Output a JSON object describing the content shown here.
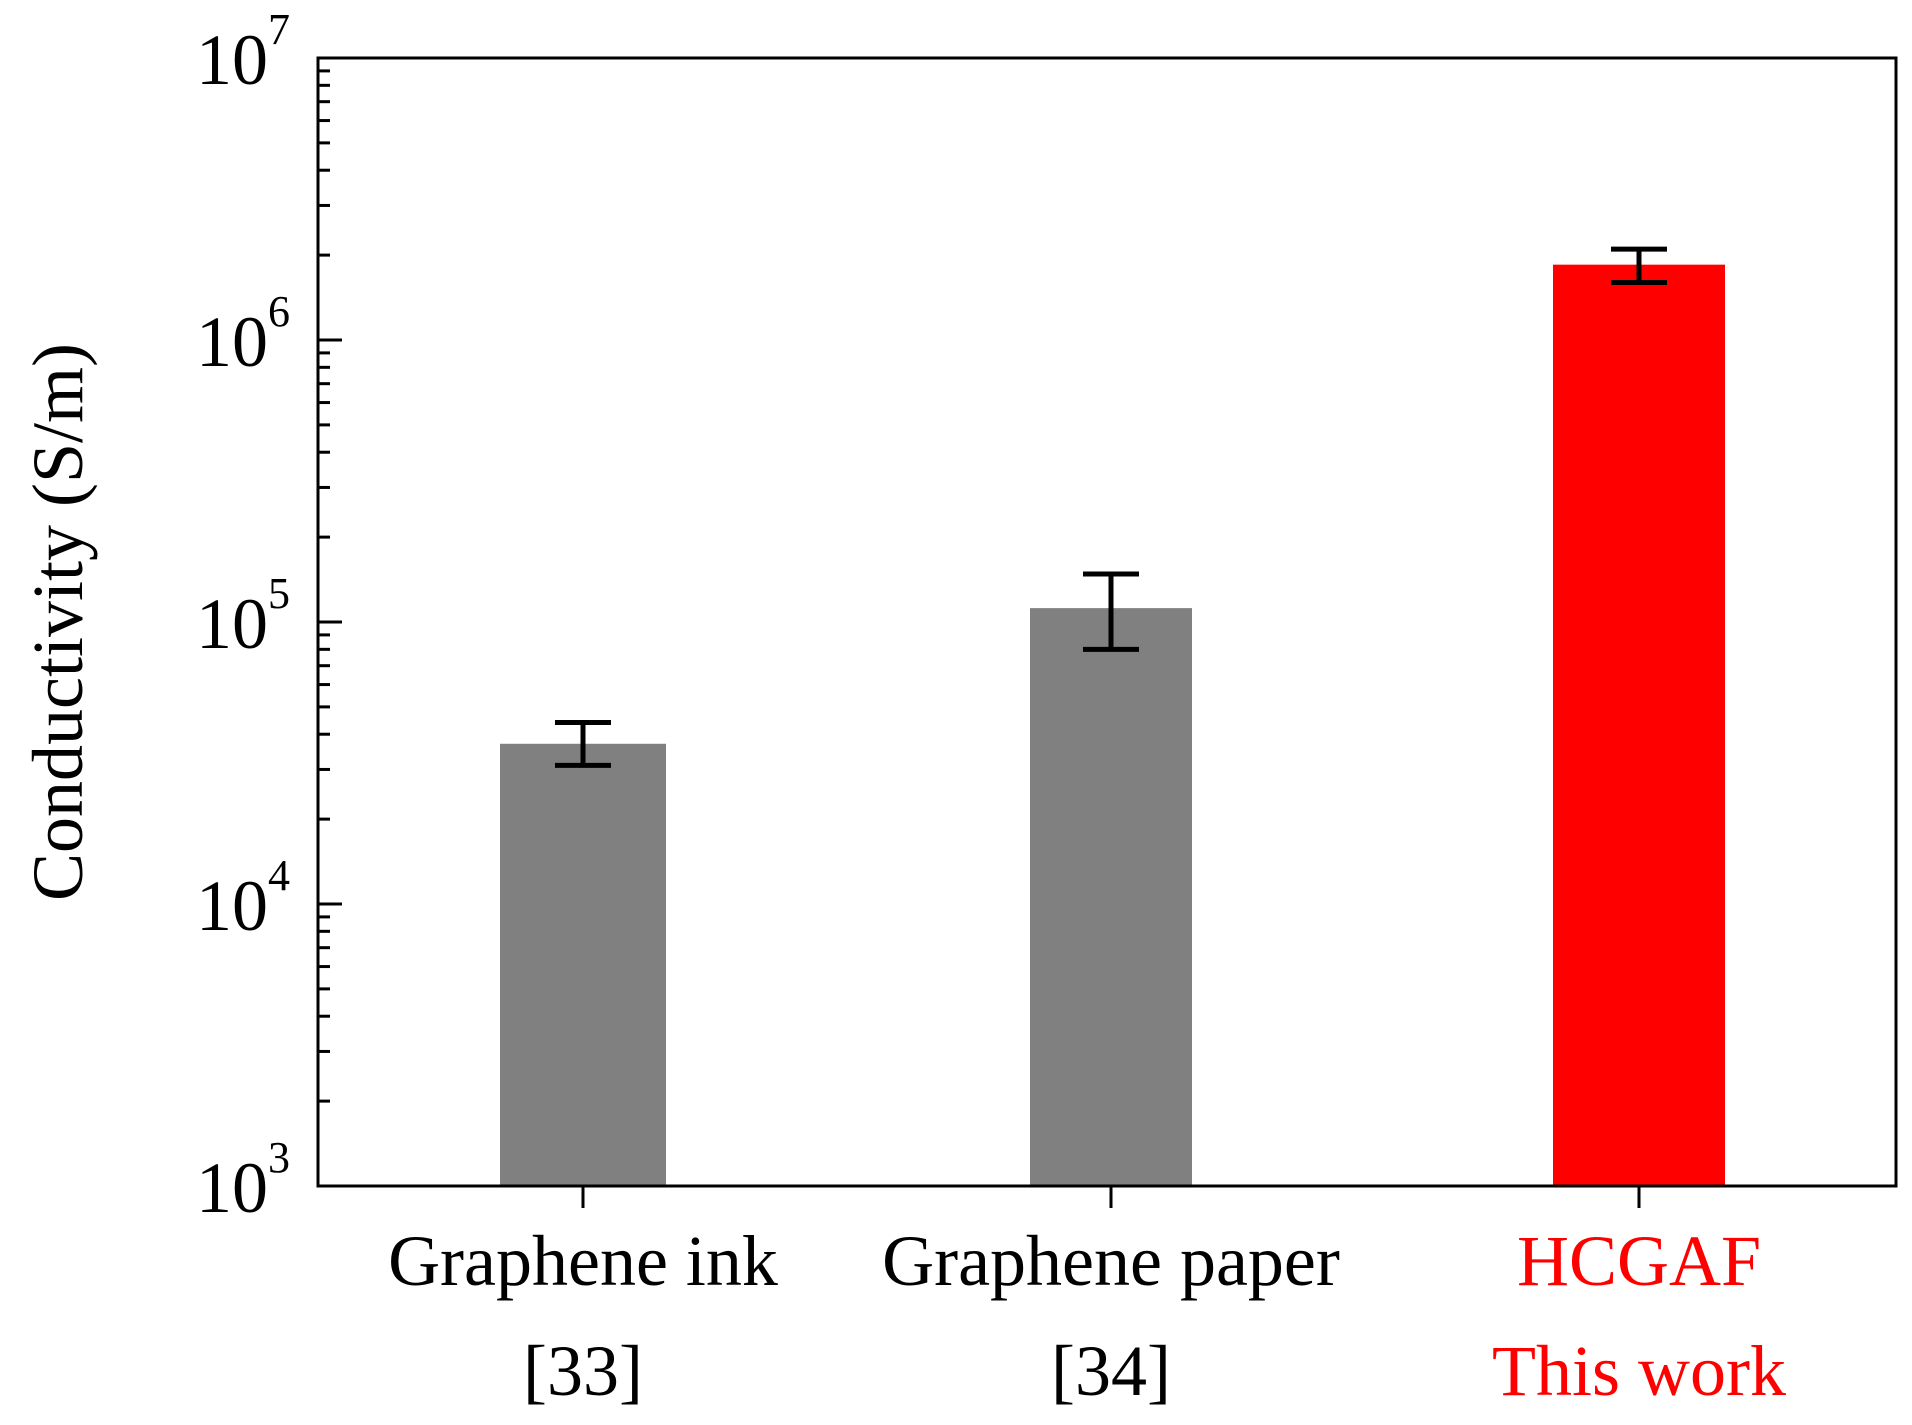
{
  "chart_data": {
    "type": "bar",
    "ylabel": "Conductivity (S/m)",
    "xlabel": "",
    "y_scale": "log",
    "ylim": [
      1000,
      10000000
    ],
    "y_ticks": [
      {
        "base": "10",
        "exp": "3",
        "value": 1000
      },
      {
        "base": "10",
        "exp": "4",
        "value": 10000
      },
      {
        "base": "10",
        "exp": "5",
        "value": 100000
      },
      {
        "base": "10",
        "exp": "6",
        "value": 1000000
      },
      {
        "base": "10",
        "exp": "7",
        "value": 10000000
      }
    ],
    "categories": [
      {
        "line1": "Graphene ink",
        "line2": "[33]",
        "color": "#808080",
        "label_color": "#000000"
      },
      {
        "line1": "Graphene paper",
        "line2": "[34]",
        "color": "#808080",
        "label_color": "#000000"
      },
      {
        "line1": "HCGAF",
        "line2": "This work",
        "color": "#ff0000",
        "label_color": "#ff0000"
      }
    ],
    "values": [
      37000,
      112000,
      1850000
    ],
    "error_low": [
      31000,
      80000,
      1600000
    ],
    "error_high": [
      44000,
      148000,
      2100000
    ],
    "grid": false,
    "legend": "none"
  }
}
